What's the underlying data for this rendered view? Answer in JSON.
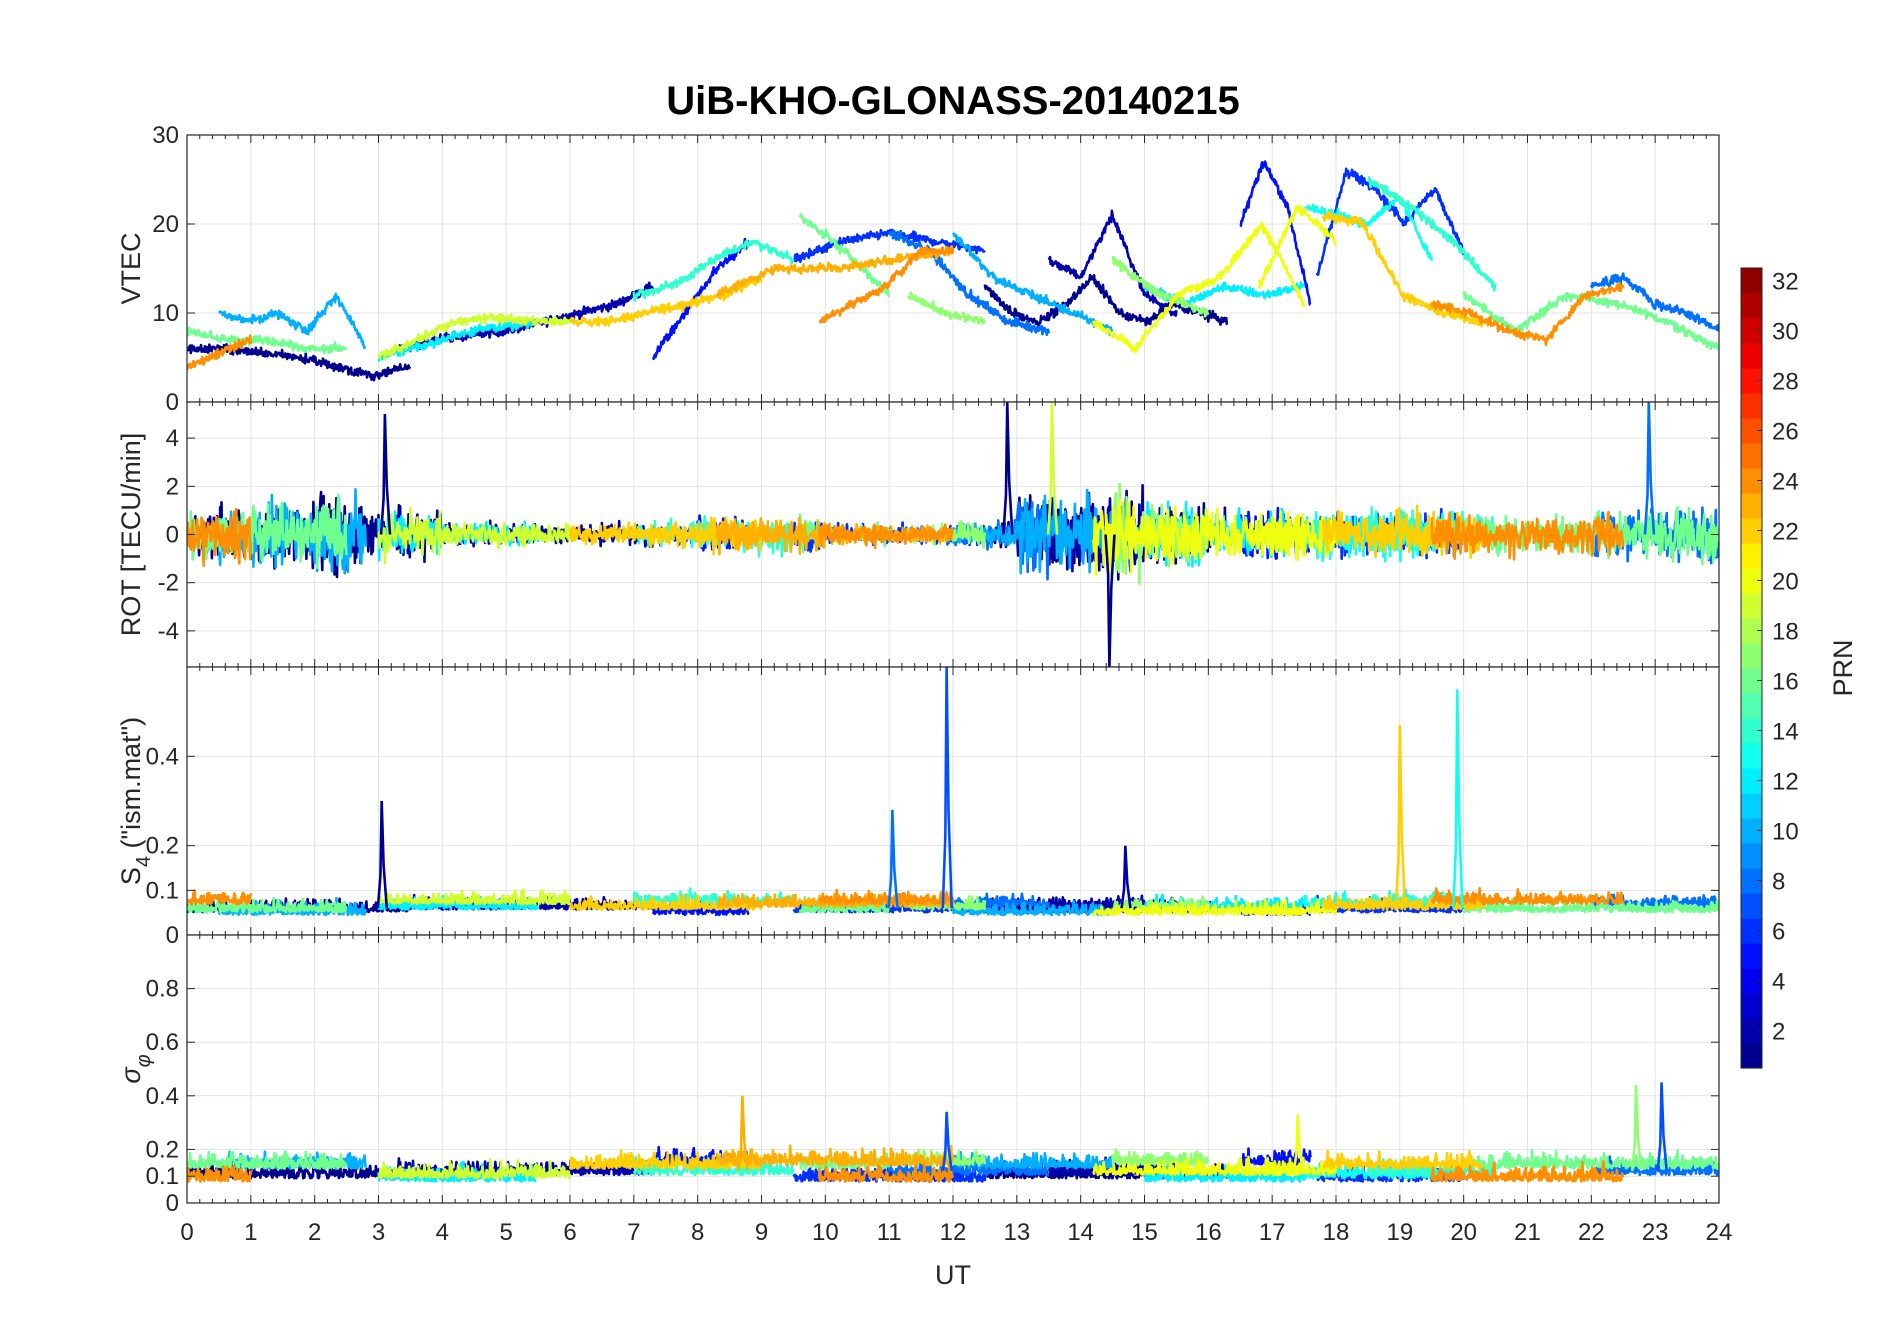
{
  "chart_data": {
    "type": "line",
    "title": "UiB-KHO-GLONASS-20140215",
    "xlabel": "UT",
    "xlim": [
      0,
      24
    ],
    "xticks": [
      0,
      1,
      2,
      3,
      4,
      5,
      6,
      7,
      8,
      9,
      10,
      11,
      12,
      13,
      14,
      15,
      16,
      17,
      18,
      19,
      20,
      21,
      22,
      23,
      24
    ],
    "grid": true,
    "panels": [
      {
        "key": "vtec",
        "ylabel": "VTEC",
        "ylim": [
          0,
          30
        ],
        "yticks": [
          0,
          10,
          20,
          30
        ]
      },
      {
        "key": "rot",
        "ylabel": "ROT [TECU/min]",
        "ylim": [
          -5.5,
          5.5
        ],
        "yticks": [
          -4,
          -2,
          0,
          2,
          4
        ]
      },
      {
        "key": "s4",
        "ylabel": "S4 (\"ism.mat\")",
        "ylabel_main": "S",
        "ylabel_sub": "4",
        "ylabel_rest": " (\"ism.mat\")",
        "ylim": [
          0,
          0.6
        ],
        "yticks": [
          0,
          0.1,
          0.2,
          0.4
        ]
      },
      {
        "key": "sigma",
        "ylabel": "σφ",
        "ylabel_main": "σ",
        "ylabel_sub": "φ",
        "ylim": [
          0,
          1
        ],
        "yticks": [
          0,
          0.1,
          0.2,
          0.4,
          0.6,
          0.8
        ]
      }
    ],
    "colorbar": {
      "label": "PRN",
      "range": [
        1,
        32
      ],
      "ticks": [
        2,
        4,
        6,
        8,
        10,
        12,
        14,
        16,
        18,
        20,
        22,
        24,
        26,
        28,
        30,
        32
      ],
      "colormap": "jet",
      "location": "right"
    },
    "rot_activity_by_hour": [
      0.9,
      1.1,
      1.3,
      0.8,
      0.4,
      0.35,
      0.35,
      0.4,
      0.6,
      0.6,
      0.35,
      0.3,
      0.4,
      1.3,
      1.4,
      1.0,
      0.8,
      0.8,
      0.8,
      0.8,
      0.7,
      0.7,
      0.8,
      1.0
    ],
    "series": [
      {
        "prn": 1,
        "t0": 0.0,
        "t1": 3.5,
        "vtec": [
          6,
          6,
          5.5,
          5,
          4,
          3,
          4
        ]
      },
      {
        "prn": 1,
        "t0": 12.5,
        "t1": 16.3,
        "vtec": [
          13,
          10,
          9,
          11,
          14,
          10,
          9,
          11,
          10,
          9
        ]
      },
      {
        "prn": 2,
        "t0": 3.3,
        "t1": 7.3,
        "vtec": [
          6,
          7,
          7.5,
          8,
          9,
          10,
          11,
          13
        ]
      },
      {
        "prn": 2,
        "t0": 13.5,
        "t1": 15.5,
        "vtec": [
          16,
          14,
          21,
          12,
          10
        ]
      },
      {
        "prn": 5,
        "t0": 7.3,
        "t1": 8.8,
        "vtec": [
          5,
          10,
          15,
          18
        ]
      },
      {
        "prn": 5,
        "t0": 16.5,
        "t1": 17.6,
        "vtec": [
          20,
          27,
          22,
          11
        ]
      },
      {
        "prn": 6,
        "t0": 9.5,
        "t1": 12.5,
        "vtec": [
          16,
          18,
          19,
          18,
          17
        ]
      },
      {
        "prn": 6,
        "t0": 17.7,
        "t1": 20.0,
        "vtec": [
          14,
          26,
          24,
          20,
          24,
          17
        ]
      },
      {
        "prn": 8,
        "t0": 11.0,
        "t1": 13.5,
        "vtec": [
          19,
          17,
          12,
          9,
          8
        ]
      },
      {
        "prn": 8,
        "t0": 22.0,
        "t1": 24.0,
        "vtec": [
          13,
          14,
          11,
          10,
          8
        ]
      },
      {
        "prn": 10,
        "t0": 0.5,
        "t1": 2.8,
        "vtec": [
          10,
          9,
          10,
          8,
          12,
          6
        ]
      },
      {
        "prn": 10,
        "t0": 12.0,
        "t1": 14.5,
        "vtec": [
          19,
          14,
          12,
          10,
          8
        ]
      },
      {
        "prn": 12,
        "t0": 3.0,
        "t1": 5.5,
        "vtec": [
          5,
          6,
          7,
          8,
          8.5,
          9
        ]
      },
      {
        "prn": 12,
        "t0": 15.0,
        "t1": 17.5,
        "vtec": [
          13,
          11,
          13,
          12,
          13
        ]
      },
      {
        "prn": 13,
        "t0": 17.5,
        "t1": 19.5,
        "vtec": [
          22,
          21,
          20,
          23,
          16
        ]
      },
      {
        "prn": 14,
        "t0": 7.0,
        "t1": 9.5,
        "vtec": [
          12,
          13,
          16,
          18,
          16
        ]
      },
      {
        "prn": 14,
        "t0": 18.5,
        "t1": 20.5,
        "vtec": [
          25,
          22,
          18,
          13
        ]
      },
      {
        "prn": 16,
        "t0": 0.0,
        "t1": 2.5,
        "vtec": [
          8,
          7,
          7,
          6,
          6
        ]
      },
      {
        "prn": 16,
        "t0": 9.6,
        "t1": 11.0,
        "vtec": [
          21,
          17,
          12
        ]
      },
      {
        "prn": 16,
        "t0": 20.0,
        "t1": 24.0,
        "vtec": [
          12,
          8,
          12,
          11,
          9,
          6
        ]
      },
      {
        "prn": 17,
        "t0": 11.3,
        "t1": 12.5,
        "vtec": [
          12,
          10,
          9
        ]
      },
      {
        "prn": 17,
        "t0": 14.5,
        "t1": 16.0,
        "vtec": [
          16,
          12,
          10
        ]
      },
      {
        "prn": 19,
        "t0": 3.0,
        "t1": 6.0,
        "vtec": [
          5,
          7,
          9,
          9.5,
          9,
          9
        ]
      },
      {
        "prn": 20,
        "t0": 14.2,
        "t1": 17.5,
        "vtec": [
          9,
          6,
          12,
          14,
          20,
          11
        ]
      },
      {
        "prn": 20,
        "t0": 16.8,
        "t1": 18.0,
        "vtec": [
          13,
          22,
          18
        ]
      },
      {
        "prn": 22,
        "t0": 6.0,
        "t1": 9.0,
        "vtec": [
          9,
          9,
          10,
          11,
          12,
          14
        ]
      },
      {
        "prn": 22,
        "t0": 17.8,
        "t1": 20.3,
        "vtec": [
          21,
          20,
          12,
          10,
          9
        ]
      },
      {
        "prn": 23,
        "t0": 8.3,
        "t1": 12.0,
        "vtec": [
          12,
          15,
          15,
          16,
          17
        ]
      },
      {
        "prn": 24,
        "t0": 0.0,
        "t1": 1.0,
        "vtec": [
          4,
          5,
          6,
          7
        ]
      },
      {
        "prn": 24,
        "t0": 9.9,
        "t1": 12.0,
        "vtec": [
          9,
          11,
          13,
          17,
          17
        ]
      },
      {
        "prn": 24,
        "t0": 19.5,
        "t1": 22.5,
        "vtec": [
          11,
          10,
          8,
          7,
          12,
          13
        ]
      }
    ],
    "spikes": [
      {
        "panel": "rot",
        "prn": 1,
        "t": 3.1,
        "value": 5.0
      },
      {
        "panel": "rot",
        "prn": 1,
        "t": 12.85,
        "value": 5.5
      },
      {
        "panel": "rot",
        "prn": 1,
        "t": 14.45,
        "value": -5.5
      },
      {
        "panel": "rot",
        "prn": 19,
        "t": 13.55,
        "value": 5.5
      },
      {
        "panel": "rot",
        "prn": 8,
        "t": 22.9,
        "value": 5.5
      },
      {
        "panel": "s4",
        "prn": 1,
        "t": 3.05,
        "value": 0.3
      },
      {
        "panel": "s4",
        "prn": 8,
        "t": 11.05,
        "value": 0.28
      },
      {
        "panel": "s4",
        "prn": 7,
        "t": 11.9,
        "value": 0.6
      },
      {
        "panel": "s4",
        "prn": 22,
        "t": 19.0,
        "value": 0.47
      },
      {
        "panel": "s4",
        "prn": 13,
        "t": 19.9,
        "value": 0.55
      },
      {
        "panel": "s4",
        "prn": 2,
        "t": 14.7,
        "value": 0.2
      },
      {
        "panel": "sigma",
        "prn": 23,
        "t": 8.7,
        "value": 0.4
      },
      {
        "panel": "sigma",
        "prn": 17,
        "t": 22.7,
        "value": 0.44
      },
      {
        "panel": "sigma",
        "prn": 7,
        "t": 23.1,
        "value": 0.45
      },
      {
        "panel": "sigma",
        "prn": 7,
        "t": 11.9,
        "value": 0.34
      },
      {
        "panel": "sigma",
        "prn": 20,
        "t": 17.4,
        "value": 0.33
      }
    ]
  }
}
